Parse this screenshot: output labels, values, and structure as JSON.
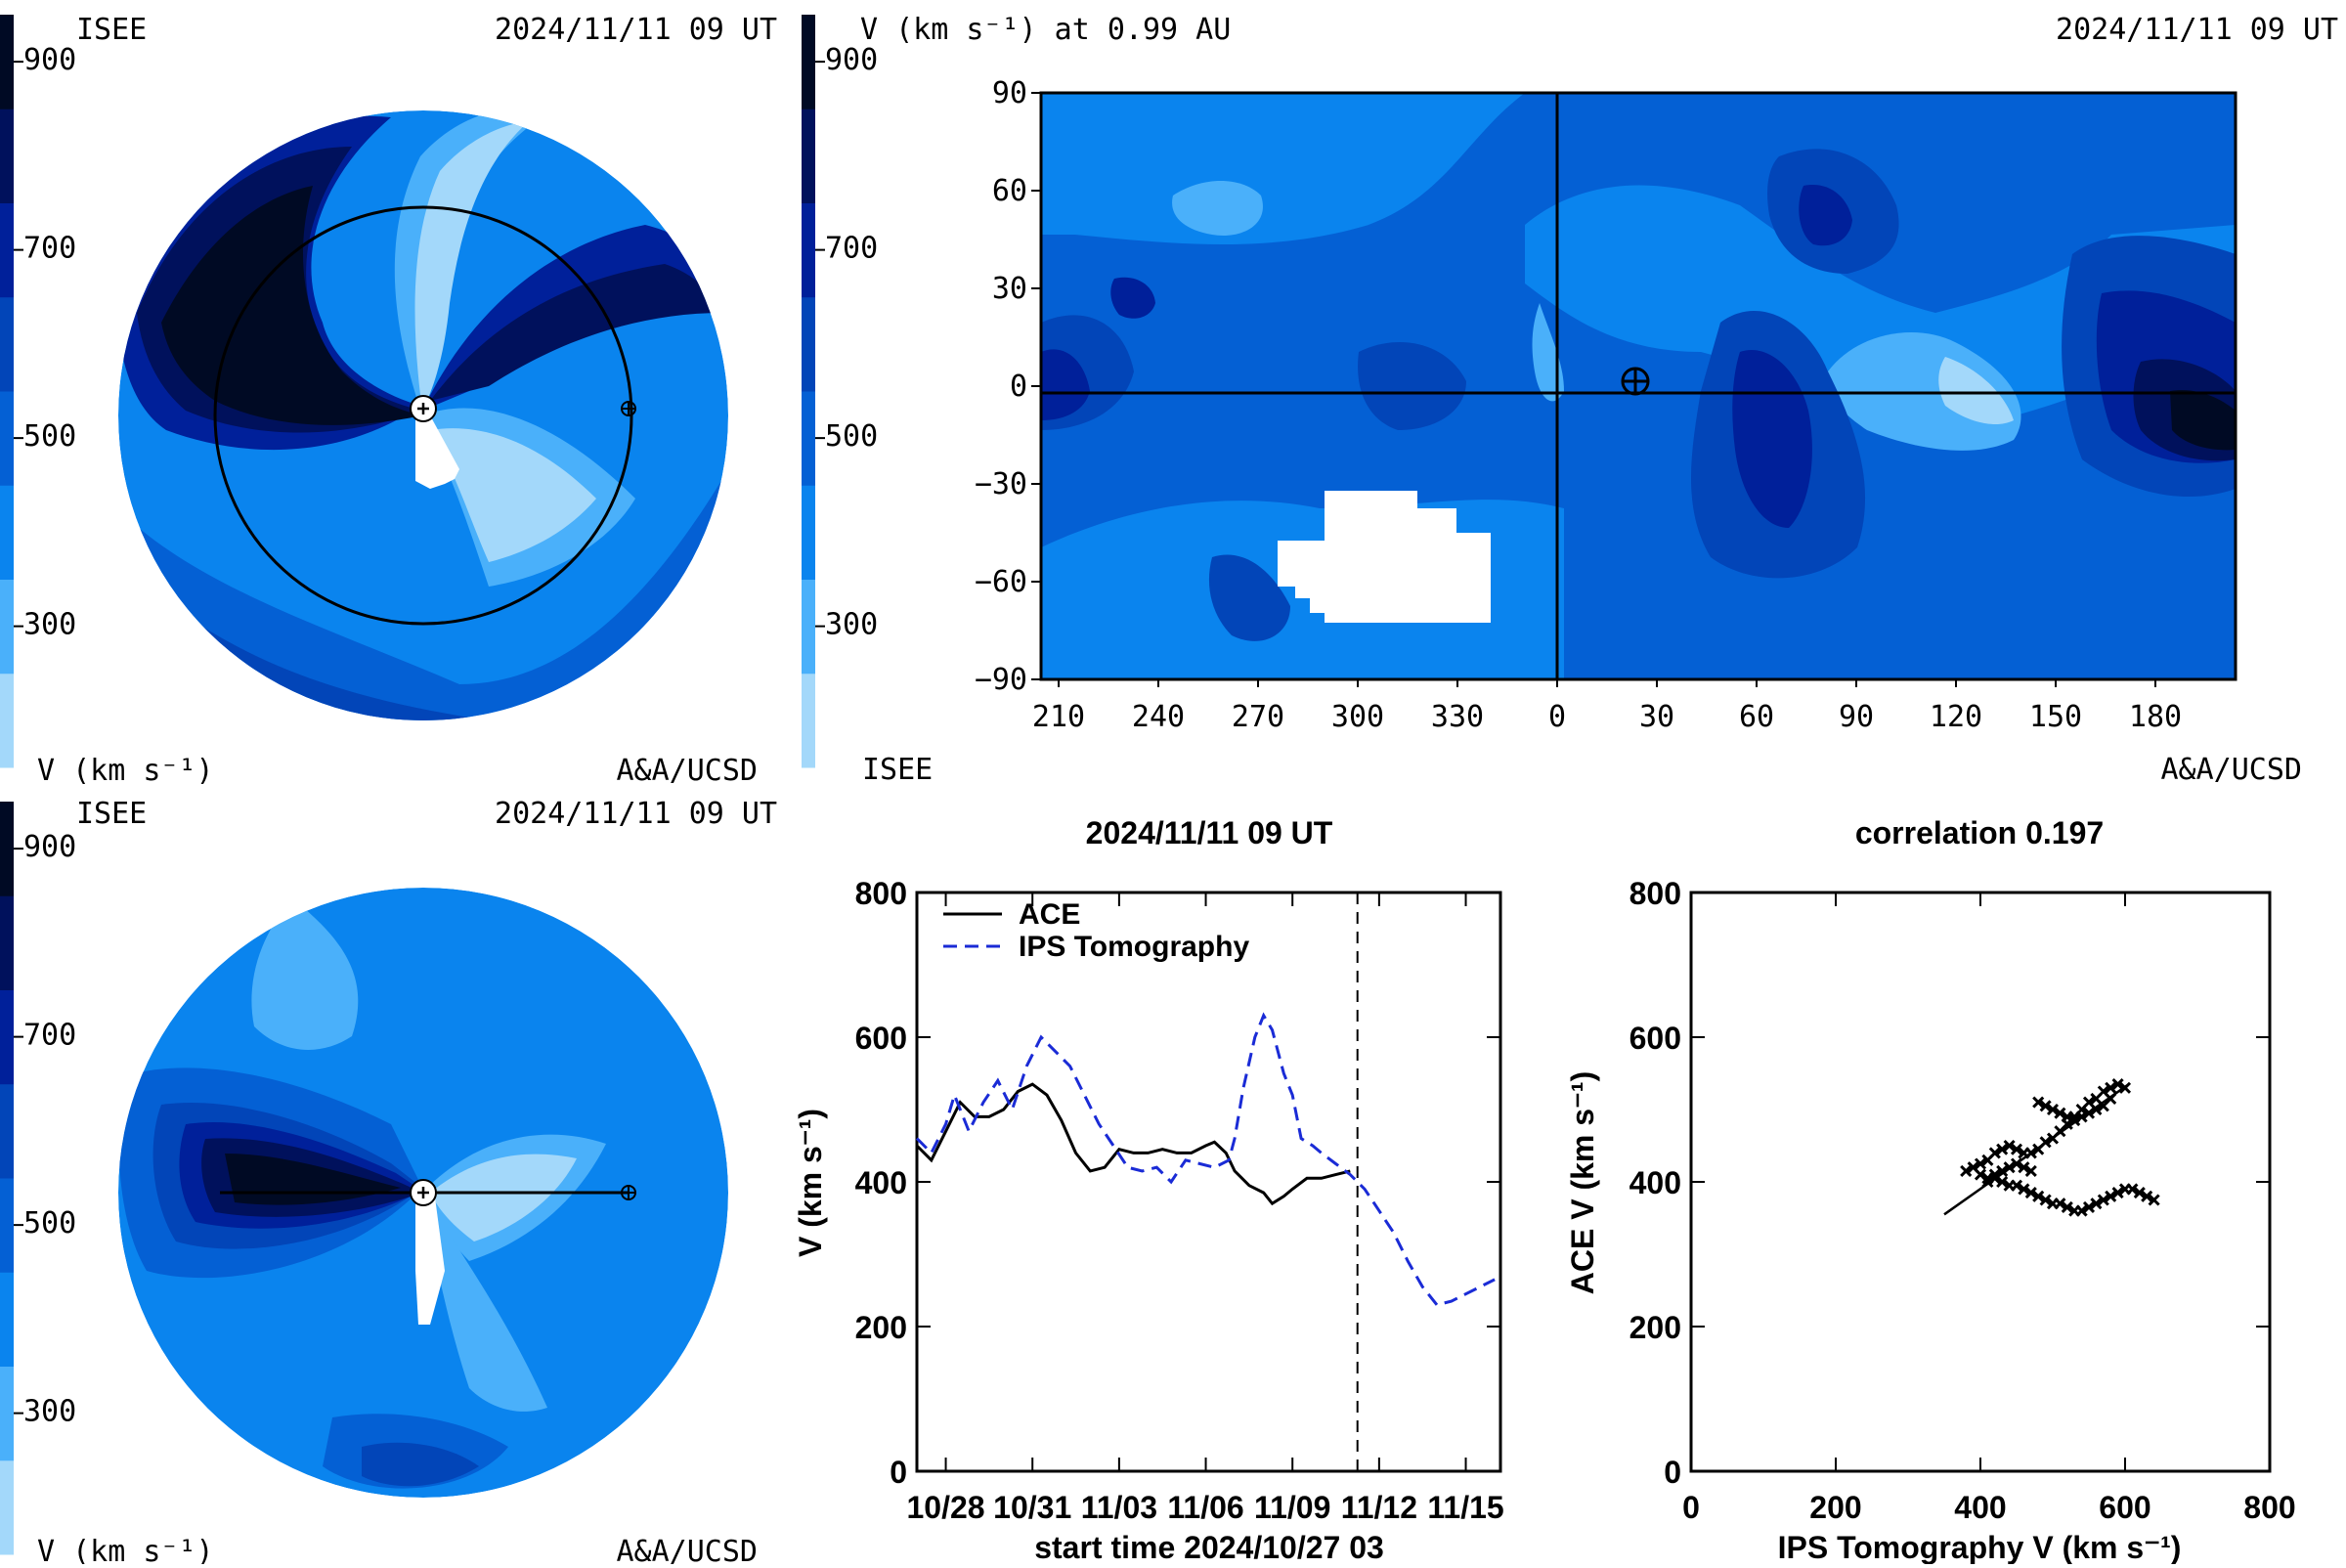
{
  "colors": {
    "bins": [
      "#a3d8fa",
      "#4ab0fa",
      "#0a84ee",
      "#0460d4",
      "#0245b8",
      "#00209a",
      "#00115c",
      "#000a24"
    ],
    "line_dashed": "#1a2bd6",
    "axis": "#000000"
  },
  "panels": {
    "top_left": {
      "org_label": "ISEE",
      "time_label": "2024/11/11 09 UT",
      "cb_ticks": [
        "900",
        "700",
        "500",
        "300"
      ],
      "cb_unit": "V (km s⁻¹)",
      "credit": "A&A/UCSD"
    },
    "top_right": {
      "title": "V (km s⁻¹) at 0.99 AU",
      "time_label": "2024/11/11 09 UT",
      "cb_ticks": [
        "900",
        "700",
        "500",
        "300"
      ],
      "org_label": "ISEE",
      "credit": "A&A/UCSD",
      "y_ticks": [
        "90",
        "60",
        "30",
        "0",
        "−30",
        "−60",
        "−90"
      ],
      "x_ticks": [
        "210",
        "240",
        "270",
        "300",
        "330",
        "0",
        "30",
        "60",
        "90",
        "120",
        "150",
        "180"
      ]
    },
    "bottom_left": {
      "org_label": "ISEE",
      "time_label": "2024/11/11 09 UT",
      "cb_ticks": [
        "900",
        "700",
        "500",
        "300"
      ],
      "cb_unit": "V (km s⁻¹)",
      "credit": "A&A/UCSD"
    }
  },
  "chart_data": [
    {
      "type": "line",
      "title": "2024/11/11 09 UT",
      "xlabel": "start time 2024/10/27 03",
      "ylabel": "V (km s⁻¹)",
      "ylim": [
        0,
        800
      ],
      "x_tick_labels": [
        "10/28",
        "10/31",
        "11/03",
        "11/06",
        "11/09",
        "11/12",
        "11/15"
      ],
      "y_tick_labels": [
        "0",
        "200",
        "400",
        "600",
        "800"
      ],
      "vline_day": 15.25,
      "legend": "top-left",
      "series": [
        {
          "name": "ACE",
          "style": "solid",
          "points": [
            [
              0.0,
              450
            ],
            [
              0.5,
              430
            ],
            [
              1.0,
              470
            ],
            [
              1.5,
              510
            ],
            [
              2.0,
              490
            ],
            [
              2.5,
              490
            ],
            [
              3.0,
              500
            ],
            [
              3.5,
              525
            ],
            [
              4.0,
              535
            ],
            [
              4.5,
              520
            ],
            [
              5.0,
              485
            ],
            [
              5.5,
              440
            ],
            [
              6.0,
              415
            ],
            [
              6.5,
              420
            ],
            [
              7.0,
              445
            ],
            [
              7.5,
              440
            ],
            [
              8.0,
              440
            ],
            [
              8.5,
              445
            ],
            [
              9.0,
              440
            ],
            [
              9.5,
              440
            ],
            [
              10.0,
              450
            ],
            [
              10.3,
              455
            ],
            [
              10.7,
              440
            ],
            [
              11.0,
              415
            ],
            [
              11.5,
              395
            ],
            [
              12.0,
              385
            ],
            [
              12.3,
              370
            ],
            [
              12.7,
              380
            ],
            [
              13.0,
              390
            ],
            [
              13.5,
              405
            ],
            [
              14.0,
              405
            ],
            [
              14.5,
              410
            ],
            [
              15.0,
              415
            ]
          ]
        },
        {
          "name": "IPS Tomography",
          "style": "dashed",
          "points": [
            [
              0.0,
              460
            ],
            [
              0.5,
              440
            ],
            [
              1.0,
              480
            ],
            [
              1.3,
              520
            ],
            [
              1.8,
              470
            ],
            [
              2.3,
              510
            ],
            [
              2.8,
              540
            ],
            [
              3.3,
              500
            ],
            [
              3.8,
              560
            ],
            [
              4.3,
              600
            ],
            [
              4.8,
              580
            ],
            [
              5.3,
              560
            ],
            [
              5.8,
              520
            ],
            [
              6.3,
              480
            ],
            [
              6.8,
              450
            ],
            [
              7.3,
              420
            ],
            [
              7.8,
              415
            ],
            [
              8.3,
              420
            ],
            [
              8.8,
              400
            ],
            [
              9.3,
              430
            ],
            [
              9.8,
              425
            ],
            [
              10.3,
              420
            ],
            [
              10.8,
              430
            ],
            [
              11.0,
              460
            ],
            [
              11.3,
              530
            ],
            [
              11.7,
              600
            ],
            [
              12.0,
              630
            ],
            [
              12.3,
              610
            ],
            [
              12.7,
              550
            ],
            [
              13.0,
              520
            ],
            [
              13.3,
              460
            ],
            [
              13.7,
              450
            ],
            [
              14.0,
              440
            ],
            [
              14.5,
              425
            ],
            [
              15.0,
              410
            ],
            [
              15.5,
              390
            ],
            [
              16.0,
              360
            ],
            [
              16.5,
              330
            ],
            [
              17.0,
              290
            ],
            [
              17.5,
              255
            ],
            [
              18.0,
              230
            ],
            [
              18.5,
              235
            ],
            [
              19.0,
              245
            ],
            [
              19.5,
              255
            ],
            [
              20.0,
              265
            ]
          ]
        }
      ]
    },
    {
      "type": "scatter",
      "title": "correlation 0.197",
      "xlabel": "IPS Tomography V (km s⁻¹)",
      "ylabel": "ACE V (km s⁻¹)",
      "xlim": [
        0,
        800
      ],
      "ylim": [
        0,
        800
      ],
      "x_tick_labels": [
        "0",
        "200",
        "400",
        "600",
        "800"
      ],
      "y_tick_labels": [
        "0",
        "200",
        "400",
        "600",
        "800"
      ],
      "fit_line": [
        [
          350,
          355
        ],
        [
          605,
          535
        ]
      ],
      "points": [
        [
          380,
          415
        ],
        [
          390,
          420
        ],
        [
          400,
          425
        ],
        [
          410,
          430
        ],
        [
          420,
          440
        ],
        [
          430,
          445
        ],
        [
          440,
          450
        ],
        [
          450,
          445
        ],
        [
          460,
          440
        ],
        [
          470,
          440
        ],
        [
          480,
          445
        ],
        [
          490,
          455
        ],
        [
          500,
          460
        ],
        [
          510,
          470
        ],
        [
          520,
          480
        ],
        [
          530,
          490
        ],
        [
          540,
          500
        ],
        [
          550,
          510
        ],
        [
          560,
          515
        ],
        [
          570,
          525
        ],
        [
          580,
          530
        ],
        [
          590,
          535
        ],
        [
          600,
          530
        ],
        [
          480,
          510
        ],
        [
          490,
          505
        ],
        [
          500,
          500
        ],
        [
          510,
          495
        ],
        [
          520,
          490
        ],
        [
          530,
          485
        ],
        [
          540,
          490
        ],
        [
          550,
          495
        ],
        [
          560,
          500
        ],
        [
          570,
          505
        ],
        [
          580,
          515
        ],
        [
          400,
          410
        ],
        [
          410,
          405
        ],
        [
          420,
          405
        ],
        [
          430,
          400
        ],
        [
          440,
          395
        ],
        [
          450,
          395
        ],
        [
          460,
          390
        ],
        [
          470,
          385
        ],
        [
          480,
          380
        ],
        [
          490,
          375
        ],
        [
          500,
          370
        ],
        [
          510,
          370
        ],
        [
          520,
          365
        ],
        [
          530,
          360
        ],
        [
          540,
          360
        ],
        [
          550,
          365
        ],
        [
          560,
          370
        ],
        [
          570,
          375
        ],
        [
          580,
          380
        ],
        [
          590,
          385
        ],
        [
          600,
          390
        ],
        [
          610,
          390
        ],
        [
          620,
          385
        ],
        [
          630,
          380
        ],
        [
          640,
          375
        ],
        [
          410,
          400
        ],
        [
          420,
          410
        ],
        [
          430,
          415
        ],
        [
          440,
          420
        ],
        [
          450,
          425
        ],
        [
          460,
          420
        ],
        [
          470,
          415
        ]
      ]
    }
  ]
}
